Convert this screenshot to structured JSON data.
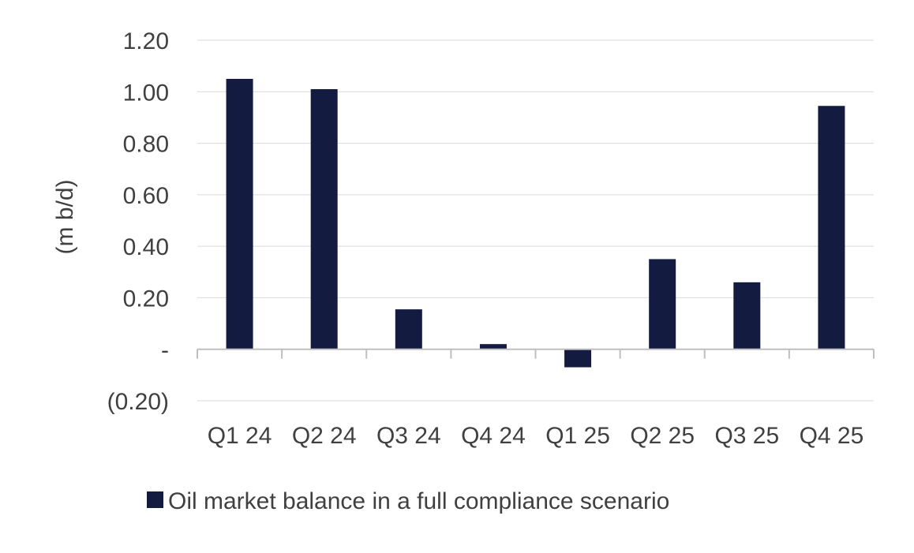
{
  "chart_data": {
    "type": "bar",
    "categories": [
      "Q1 24",
      "Q2 24",
      "Q3 24",
      "Q4 24",
      "Q1 25",
      "Q2 25",
      "Q3 25",
      "Q4 25"
    ],
    "series": [
      {
        "name": "Oil market balance in a full compliance scenario",
        "values": [
          1.05,
          1.01,
          0.155,
          0.02,
          -0.07,
          0.35,
          0.26,
          0.945
        ],
        "color": "#131c40"
      }
    ],
    "ylabel": "(m b/d)",
    "xlabel": "",
    "ylim": [
      -0.2,
      1.2
    ],
    "yticks": [
      -0.2,
      0,
      0.2,
      0.4,
      0.6,
      0.8,
      1.0,
      1.2
    ],
    "ytick_labels": [
      "(0.20)",
      "-",
      "0.20",
      "0.40",
      "0.60",
      "0.80",
      "1.00",
      "1.20"
    ],
    "grid": true,
    "grid_color": "#d9d9d9",
    "axis_color": "#bfbfbf",
    "legend_position": "bottom"
  }
}
